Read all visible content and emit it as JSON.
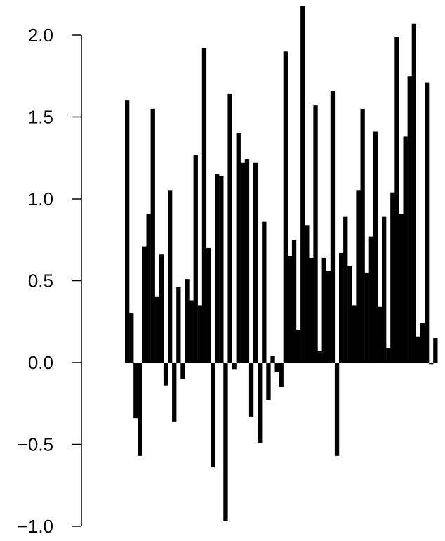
{
  "chart_data": {
    "type": "bar",
    "title": "",
    "xlabel": "",
    "ylabel": "",
    "ylim": [
      -1.0,
      2.0
    ],
    "yticks": [
      -1.0,
      -0.5,
      0.0,
      0.5,
      1.0,
      1.5,
      2.0
    ],
    "ytick_labels": [
      "−1.0",
      "−0.5",
      "0.0",
      "0.5",
      "1.0",
      "1.5",
      "2.0"
    ],
    "bar_color": "#000000",
    "grid": false,
    "values": [
      1.6,
      0.3,
      -0.34,
      -0.57,
      0.71,
      0.91,
      1.55,
      0.4,
      0.66,
      -0.14,
      1.05,
      -0.36,
      0.46,
      -0.1,
      0.51,
      0.38,
      1.27,
      0.35,
      1.92,
      0.7,
      -0.64,
      1.15,
      1.14,
      -0.97,
      1.64,
      -0.04,
      1.4,
      1.22,
      1.24,
      -0.33,
      1.22,
      -0.49,
      0.86,
      -0.23,
      0.04,
      -0.06,
      -0.15,
      1.9,
      0.65,
      0.75,
      0.2,
      2.18,
      0.84,
      0.64,
      1.57,
      0.07,
      0.64,
      0.56,
      1.66,
      -0.57,
      0.67,
      0.89,
      0.59,
      0.35,
      1.05,
      1.55,
      0.55,
      0.77,
      1.41,
      0.34,
      0.89,
      0.09,
      1.04,
      1.99,
      0.91,
      1.38,
      1.75,
      2.07,
      0.16,
      0.24,
      1.71,
      -0.01,
      0.15
    ]
  }
}
